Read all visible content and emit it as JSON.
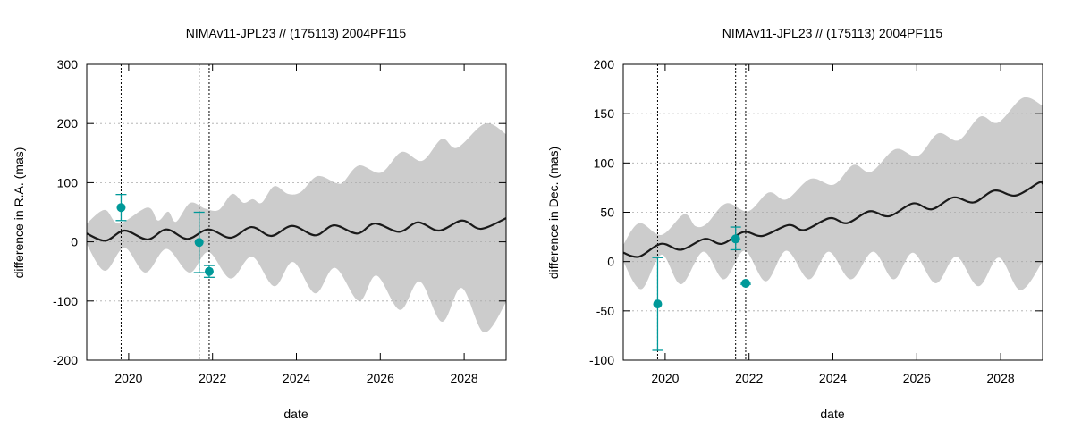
{
  "chart_data": [
    {
      "type": "line",
      "title": "NIMAv11-JPL23 // (175113) 2004PF115",
      "xlabel": "date",
      "ylabel": "difference in R.A. (mas)",
      "xlim": [
        2019,
        2029
      ],
      "ylim": [
        -200,
        300
      ],
      "xticks": [
        2020,
        2022,
        2024,
        2026,
        2028
      ],
      "yticks": [
        -200,
        -100,
        0,
        100,
        200,
        300
      ],
      "grid": "horizontal dotted",
      "colors": {
        "band": "#cccccc",
        "line": "#1a1a1a",
        "points": "#009999",
        "vlines": "#000000"
      },
      "vertical_lines": [
        2019.82,
        2021.68,
        2021.92
      ],
      "band_upper": {
        "x": [
          2019.0,
          2019.43,
          2019.77,
          2020.45,
          2020.7,
          2020.94,
          2021.13,
          2021.47,
          2021.83,
          2022.15,
          2022.47,
          2022.74,
          2022.96,
          2023.17,
          2023.47,
          2023.8,
          2024.1,
          2024.5,
          2024.96,
          2025.13,
          2025.49,
          2026.02,
          2026.51,
          2027.0,
          2027.47,
          2027.83,
          2028.5,
          2029.0
        ],
        "y": [
          31,
          54,
          31,
          58,
          36,
          51,
          34,
          66,
          56,
          54,
          81,
          66,
          72,
          66,
          94,
          81,
          84,
          111,
          99,
          102,
          129,
          117,
          152,
          137,
          174,
          159,
          200,
          182
        ]
      },
      "band_lower": {
        "x": [
          2019.0,
          2019.43,
          2019.9,
          2020.4,
          2020.9,
          2021.45,
          2021.9,
          2022.43,
          2022.94,
          2023.47,
          2023.92,
          2024.45,
          2024.92,
          2025.49,
          2025.91,
          2026.47,
          2026.94,
          2027.47,
          2027.94,
          2028.47,
          2029.0
        ],
        "y": [
          -4,
          -49,
          -10,
          -52,
          -12,
          -52,
          -17,
          -62,
          -25,
          -75,
          -34,
          -87,
          -44,
          -100,
          -57,
          -115,
          -67,
          -135,
          -78,
          -153,
          -102
        ]
      },
      "center_line": {
        "x": [
          2019.0,
          2019.45,
          2019.9,
          2020.45,
          2020.9,
          2021.4,
          2021.9,
          2022.43,
          2022.93,
          2023.4,
          2023.9,
          2024.45,
          2024.9,
          2025.45,
          2025.87,
          2026.45,
          2026.9,
          2027.4,
          2027.95,
          2028.4,
          2029.0
        ],
        "y": [
          14,
          2,
          19,
          4,
          21,
          5,
          21,
          7,
          25,
          10,
          27,
          11,
          28,
          14,
          31,
          17,
          33,
          19,
          36,
          22,
          40
        ]
      },
      "points": [
        {
          "x": 2019.82,
          "y": 58,
          "ylow": 36,
          "yhigh": 80
        },
        {
          "x": 2021.68,
          "y": -1,
          "ylow": -52,
          "yhigh": 50
        },
        {
          "x": 2021.92,
          "y": -50,
          "ylow": -60,
          "yhigh": -40
        }
      ]
    },
    {
      "type": "line",
      "title": "NIMAv11-JPL23 // (175113) 2004PF115",
      "xlabel": "date",
      "ylabel": "difference in Dec. (mas)",
      "xlim": [
        2019,
        2029
      ],
      "ylim": [
        -100,
        200
      ],
      "xticks": [
        2020,
        2022,
        2024,
        2026,
        2028
      ],
      "yticks": [
        -100,
        -50,
        0,
        50,
        100,
        150,
        200
      ],
      "grid": "horizontal dotted",
      "colors": {
        "band": "#cccccc",
        "line": "#1a1a1a",
        "points": "#009999",
        "vlines": "#000000"
      },
      "vertical_lines": [
        2019.82,
        2021.68,
        2021.92
      ],
      "band_upper": {
        "x": [
          2019.0,
          2019.38,
          2019.91,
          2020.45,
          2020.72,
          2020.98,
          2021.45,
          2021.98,
          2022.47,
          2022.89,
          2023.47,
          2024.02,
          2024.49,
          2024.91,
          2025.49,
          2026.02,
          2026.51,
          2027.0,
          2027.51,
          2027.94,
          2028.53,
          2029.0
        ],
        "y": [
          17,
          39,
          27,
          48,
          36,
          38,
          59,
          51,
          70,
          63,
          84,
          78,
          98,
          91,
          114,
          107,
          130,
          123,
          147,
          141,
          166,
          158
        ]
      },
      "band_lower": {
        "x": [
          2019.0,
          2019.43,
          2019.91,
          2020.38,
          2020.91,
          2021.4,
          2021.89,
          2022.4,
          2022.89,
          2023.43,
          2023.9,
          2024.43,
          2024.96,
          2025.45,
          2025.91,
          2026.45,
          2026.94,
          2027.47,
          2027.96,
          2028.47,
          2029.0
        ],
        "y": [
          0,
          -28,
          7,
          -23,
          10,
          -18,
          11,
          -20,
          11,
          -18,
          10,
          -18,
          10,
          -18,
          9,
          -22,
          5,
          -25,
          4,
          -29,
          0
        ]
      },
      "center_line": {
        "x": [
          2019.0,
          2019.38,
          2019.9,
          2020.38,
          2020.94,
          2021.36,
          2021.87,
          2022.32,
          2022.94,
          2023.32,
          2023.92,
          2024.34,
          2024.87,
          2025.34,
          2025.91,
          2026.36,
          2026.87,
          2027.36,
          2027.85,
          2028.36,
          2028.91,
          2029.0
        ],
        "y": [
          9,
          5,
          18,
          12,
          23,
          18,
          30,
          26,
          37,
          32,
          44,
          39,
          51,
          46,
          59,
          53,
          65,
          60,
          72,
          67,
          80,
          79
        ]
      },
      "points": [
        {
          "x": 2019.82,
          "y": -43,
          "ylow": -90,
          "yhigh": 4
        },
        {
          "x": 2021.68,
          "y": 23,
          "ylow": 12,
          "yhigh": 35
        },
        {
          "x": 2021.92,
          "y": -22,
          "ylow": -23,
          "yhigh": -21
        }
      ]
    }
  ]
}
